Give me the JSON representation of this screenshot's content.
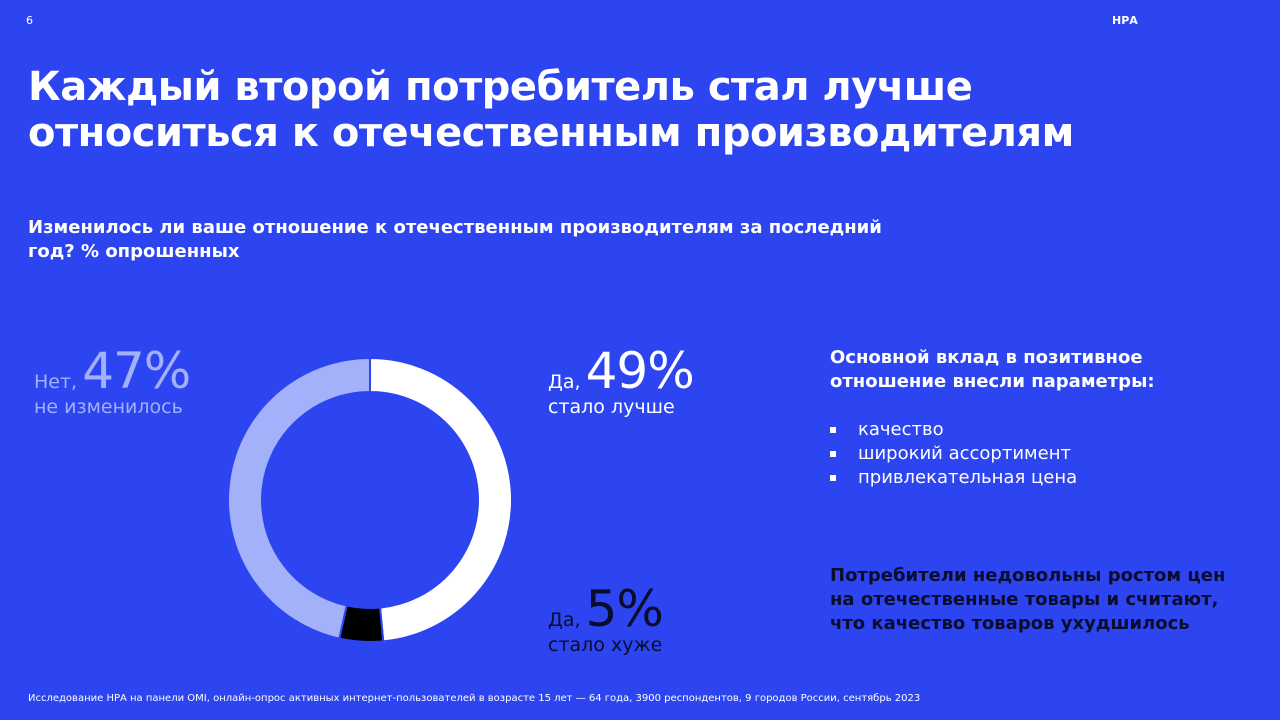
{
  "page": {
    "number": "6",
    "brand": "НРА",
    "title": "Каждый второй потребитель стал лучше относиться к отечественным производителям",
    "question": "Изменилось ли ваше отношение к отечественным производителям за последний год? % опрошенных",
    "footnote": "Исследование НРА на панели OMI, онлайн-опрос активных интернет-пользователей в возрасте 15 лет — 64 года, 3900 респондентов, 9 городов России, сентябрь 2023"
  },
  "labels": {
    "no": {
      "prefix": "Нет,",
      "pct": "47%",
      "desc": "не изменилось"
    },
    "better": {
      "prefix": "Да,",
      "pct": "49%",
      "desc": "стало лучше"
    },
    "worse": {
      "prefix": "Да,",
      "pct": "5%",
      "desc": "стало хуже"
    }
  },
  "contrib": {
    "title": "Основной вклад в позитивное отношение внесли параметры:",
    "items": [
      "качество",
      "широкий ассортимент",
      "привлекательная цена"
    ]
  },
  "note": "Потребители недовольны ростом цен на отечественные товары и считают, что качество товаров ухудшилось",
  "chart_data": {
    "type": "pie",
    "categories": [
      "Да, стало лучше",
      "Да, стало хуже",
      "Нет, не изменилось"
    ],
    "values": [
      49,
      5,
      47
    ],
    "colors": [
      "#ffffff",
      "#000000",
      "#a3b0fa"
    ]
  }
}
